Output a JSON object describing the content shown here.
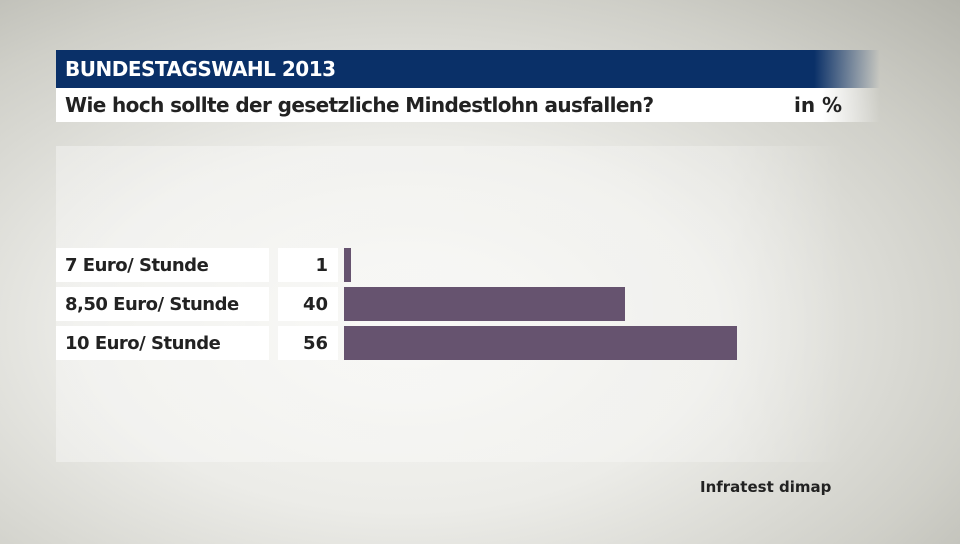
{
  "header": {
    "title": "BUNDESTAGSWAHL 2013"
  },
  "chart_data": {
    "type": "bar",
    "orientation": "horizontal",
    "title": "Wie hoch sollte der gesetzliche Mindestlohn ausfallen?",
    "unit": "in %",
    "categories": [
      "7 Euro/ Stunde",
      "8,50 Euro/ Stunde",
      "10 Euro/ Stunde"
    ],
    "values": [
      1,
      40,
      56
    ],
    "value_labels": [
      "1",
      "40",
      "56"
    ],
    "bar_color": "#66536f",
    "source": "Infratest dimap"
  }
}
